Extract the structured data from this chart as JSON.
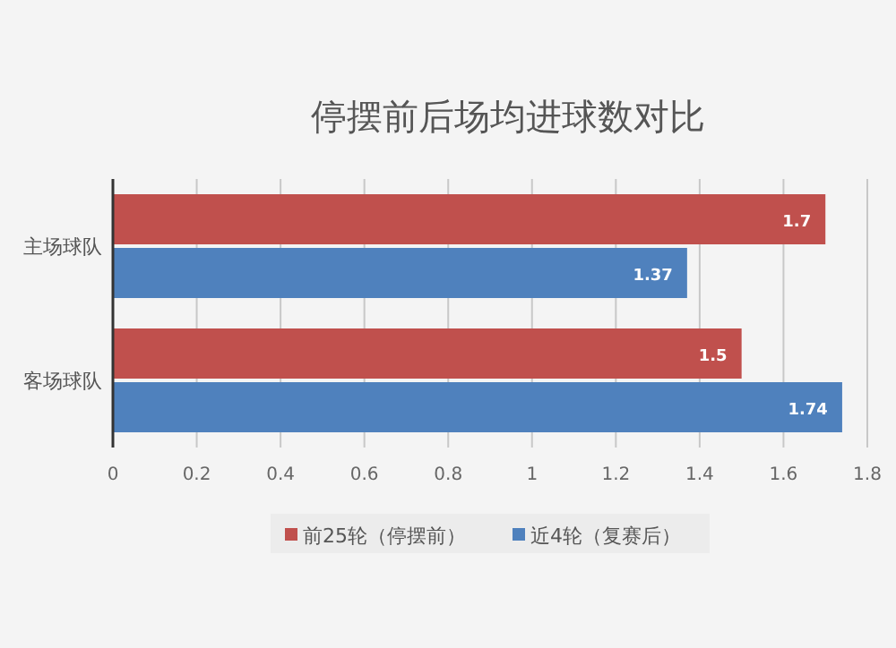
{
  "chart_data": {
    "type": "bar",
    "orientation": "horizontal",
    "title": "停摆前后场均进球数对比",
    "categories": [
      "主场球队",
      "客场球队"
    ],
    "series": [
      {
        "name": "前25轮（停摆前）",
        "color": "#c0504d",
        "values": [
          1.7,
          1.5
        ]
      },
      {
        "name": "近4轮（复赛后）",
        "color": "#4f81bd",
        "values": [
          1.37,
          1.74
        ]
      }
    ],
    "xlim": [
      0,
      1.8
    ],
    "xticks": [
      0,
      0.2,
      0.4,
      0.6,
      0.8,
      1,
      1.2,
      1.4,
      1.6,
      1.8
    ],
    "grid": "x",
    "legend": "bottom",
    "data_labels": true
  }
}
